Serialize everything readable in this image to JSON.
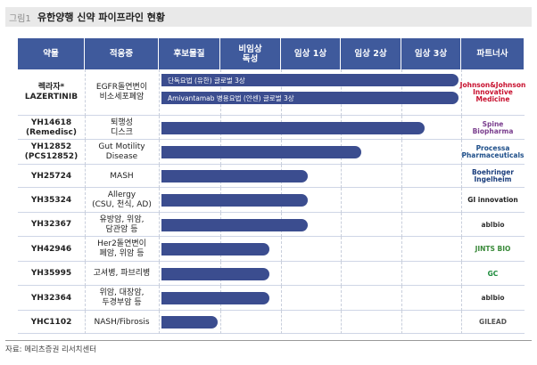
{
  "header": {
    "label": "그림1",
    "title": "유한양행 신약 파이프라인 현황"
  },
  "table": {
    "columns": [
      "약물",
      "적응증",
      "후보물질",
      "비임상\n독성",
      "임상 1상",
      "임상 2상",
      "임상 3상",
      "파트너사"
    ],
    "rows": [
      {
        "drug": "렉라자*\nLAZERTINIB",
        "indication": "EGFR돌연변이\n비소세포폐암",
        "bars": [
          {
            "label": "단독요법 (유한) 글로벌 3상",
            "progress": 4.95
          },
          {
            "label": "Amivantamab 병용요법 (얀센) 글로벌 3상",
            "progress": 4.95
          }
        ],
        "partner": "Johnson&Johnson\nInnovative Medicine"
      },
      {
        "drug": "YH14618\n(Remedisc)",
        "indication": "퇴행성\n디스크",
        "bars": [
          {
            "progress": 4.4
          }
        ],
        "partner": "Spine Biopharma"
      },
      {
        "drug": "YH12852\n(PCS12852)",
        "indication": "Gut Motility\nDisease",
        "bars": [
          {
            "progress": 3.35
          }
        ],
        "partner": "Processa Pharmaceuticals"
      },
      {
        "drug": "YH25724",
        "indication": "MASH",
        "bars": [
          {
            "progress": 2.47
          }
        ],
        "partner": "Boehringer\nIngelheim"
      },
      {
        "drug": "YH35324",
        "indication": "Allergy\n(CSU, 천식, AD)",
        "bars": [
          {
            "progress": 2.47
          }
        ],
        "partner": "GI innovation"
      },
      {
        "drug": "YH32367",
        "indication": "유방암, 위암,\n담관암 등",
        "bars": [
          {
            "progress": 2.47
          }
        ],
        "partner": "ablbio"
      },
      {
        "drug": "YH42946",
        "indication": "Her2돌연변이\n폐암, 위암 등",
        "bars": [
          {
            "progress": 1.83
          }
        ],
        "partner": "JINTS BIO"
      },
      {
        "drug": "YH35995",
        "indication": "고셔병, 파브리병",
        "bars": [
          {
            "progress": 1.83
          }
        ],
        "partner": "GC"
      },
      {
        "drug": "YH32364",
        "indication": "위암, 대장암,\n두경부암 등",
        "bars": [
          {
            "progress": 1.83
          }
        ],
        "partner": "ablbio"
      },
      {
        "drug": "YHC1102",
        "indication": "NASH/Fibrosis",
        "bars": [
          {
            "progress": 0.98
          }
        ],
        "partner": "GILEAD"
      }
    ]
  },
  "source": "자료: 메리츠증권 리서치센터"
}
